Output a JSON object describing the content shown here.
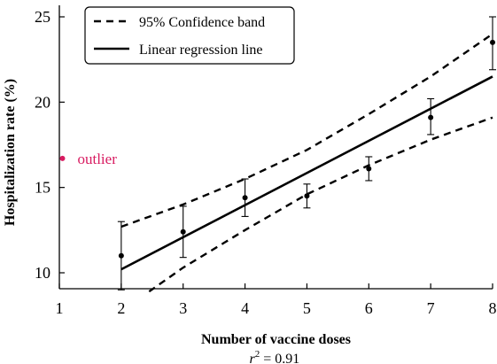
{
  "chart_data": {
    "type": "scatter",
    "title": "",
    "xlabel": "Number of vaccine doses",
    "ylabel": "Hospitalization rate (%)",
    "xlim": [
      1,
      8
    ],
    "ylim": [
      9,
      25.5
    ],
    "x_ticks": [
      1,
      2,
      3,
      4,
      5,
      6,
      7,
      8
    ],
    "y_ticks": [
      10,
      15,
      20,
      25
    ],
    "grid": false,
    "legend_position": "top-left",
    "legend": {
      "band_label": "95% Confidence band",
      "regression_label": "Linear regression line"
    },
    "series": [
      {
        "name": "",
        "kind": "points_with_error_bars",
        "x": [
          2,
          3,
          4,
          5,
          6,
          7,
          8
        ],
        "y": [
          11.0,
          12.4,
          14.4,
          14.5,
          16.1,
          19.1,
          23.5
        ],
        "y_low": [
          9.0,
          10.9,
          13.3,
          13.8,
          15.4,
          18.1,
          21.9
        ],
        "y_high": [
          13.0,
          13.9,
          15.5,
          15.2,
          16.8,
          20.2,
          25.0
        ]
      },
      {
        "name": "Linear regression line",
        "kind": "line",
        "x": [
          2,
          8
        ],
        "y": [
          10.2,
          21.5
        ]
      },
      {
        "name": "95% Confidence band",
        "kind": "upper_band",
        "x": [
          2,
          3,
          4,
          5,
          6,
          7,
          8
        ],
        "y": [
          12.7,
          14.0,
          15.5,
          17.2,
          19.3,
          21.5,
          24.0
        ]
      },
      {
        "name": "95% Confidence band",
        "kind": "lower_band",
        "x": [
          2.45,
          3,
          4,
          5,
          6,
          7,
          8
        ],
        "y": [
          8.9,
          10.3,
          12.5,
          14.6,
          16.3,
          17.8,
          19.1
        ]
      }
    ],
    "annotations": {
      "outlier": {
        "x": 1.05,
        "y": 16.7,
        "label": "outlier",
        "color": "#d81b60"
      },
      "r_squared": {
        "symbol": "r",
        "exponent": "2",
        "value_text": " = 0.91"
      }
    }
  }
}
